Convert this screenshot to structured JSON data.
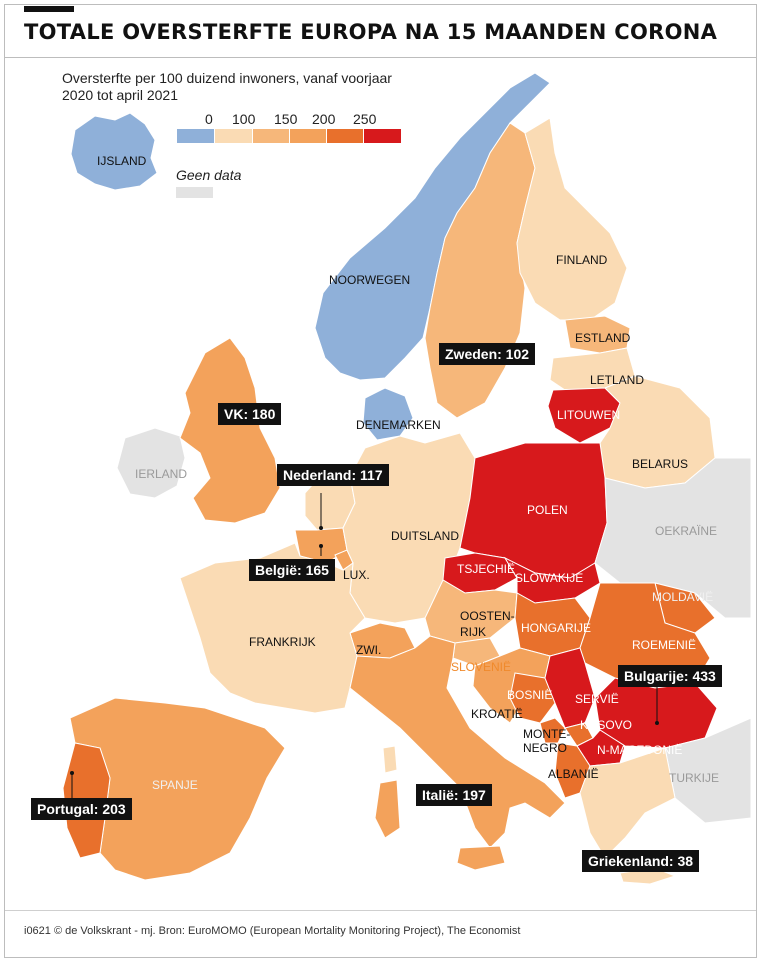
{
  "title": "TOTALE OVERSTERFTE EUROPA NA 15 MAANDEN CORONA",
  "legend": {
    "title": "Oversterfte per 100 duizend inwoners, vanaf voorjaar 2020 tot april 2021",
    "ticks": [
      "0",
      "100",
      "150",
      "200",
      "250"
    ],
    "colors": [
      "#8fb0d9",
      "#fadbb4",
      "#f6b77a",
      "#f3a25b",
      "#e8702c",
      "#d7191c"
    ],
    "nodata_label": "Geen data",
    "nodata_color": "#e3e3e3"
  },
  "countries": {
    "ijsland": "IJSLAND",
    "noorwegen": "NOORWEGEN",
    "finland": "FINLAND",
    "estland": "ESTLAND",
    "letland": "LETLAND",
    "litouwen": "LITOUWEN",
    "denemarken": "DENEMARKEN",
    "belarus": "BELARUS",
    "ierland": "IERLAND",
    "polen": "POLEN",
    "duitsland": "DUITSLAND",
    "oekraine": "OEKRAÏNE",
    "tsjechie": "TSJECHIË",
    "slowakije": "SLOWAKIJE",
    "lux": "LUX.",
    "moldavie": "MOLDAVIË",
    "oostenrijk_1": "OOSTEN-",
    "oostenrijk_2": "RIJK",
    "hongarije": "HONGARIJE",
    "frankrijk": "FRANKRIJK",
    "roemenie": "ROEMENIË",
    "zwi": "ZWI.",
    "slovenie": "SLOVENIË",
    "bosnie": "BOSNIË",
    "servie": "SERVIË",
    "kroatie": "KROATIË",
    "montenegro_1": "MONTE-",
    "montenegro_2": "NEGRO",
    "kosovo": "KOSOVO",
    "nmacedonie": "N-MACEDONIË",
    "turkije": "TURKIJE",
    "albanie": "ALBANIË",
    "spanje": "SPANJE"
  },
  "callouts": {
    "zweden": "Zweden: 102",
    "vk": "VK: 180",
    "nederland": "Nederland: 117",
    "belgie": "België: 165",
    "bulgarije": "Bulgarije: 433",
    "portugal": "Portugal: 203",
    "italie": "Italië: 197",
    "griekenland": "Griekenland: 38"
  },
  "credit": "i0621 © de Volkskrant - mj. Bron: EuroMOMO (European Mortality Monitoring Project), The Economist"
}
